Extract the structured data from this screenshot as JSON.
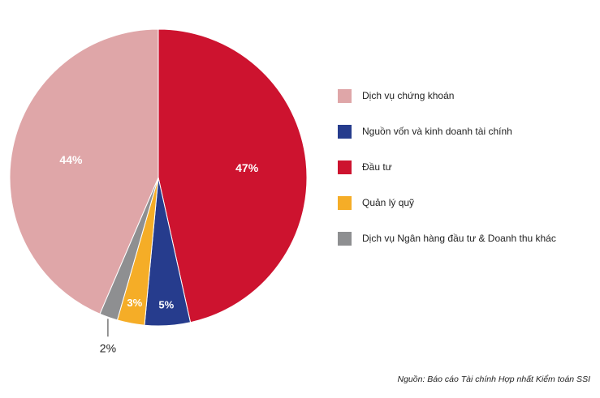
{
  "chart_data": {
    "type": "pie",
    "categories": [
      "Đầu tư",
      "Nguồn vốn và kinh doanh tài chính",
      "Quản lý quỹ",
      "Dịch vụ Ngân hàng đầu tư & Doanh thu khác",
      "Dịch vụ chứng khoán"
    ],
    "values": [
      47,
      5,
      3,
      2,
      44
    ],
    "data_labels": [
      "47%",
      "5%",
      "3%",
      "2%",
      "44%"
    ],
    "colors": [
      "#cd132f",
      "#263c8d",
      "#f5ad27",
      "#8e8f91",
      "#dfa6a8"
    ],
    "legend_position": "right",
    "legend": [
      {
        "label": "Dịch vụ chứng khoán",
        "color": "#dfa6a8"
      },
      {
        "label": "Nguồn vốn và kinh doanh tài chính",
        "color": "#263c8d"
      },
      {
        "label": "Đầu tư",
        "color": "#cd132f"
      },
      {
        "label": "Quản lý quỹ",
        "color": "#f5ad27"
      },
      {
        "label": "Dịch vụ Ngân hàng đầu tư & Doanh thu khác",
        "color": "#8e8f91"
      }
    ]
  },
  "source_note": "Nguồn: Báo cáo Tài chính Hợp nhất Kiểm toán SSI"
}
